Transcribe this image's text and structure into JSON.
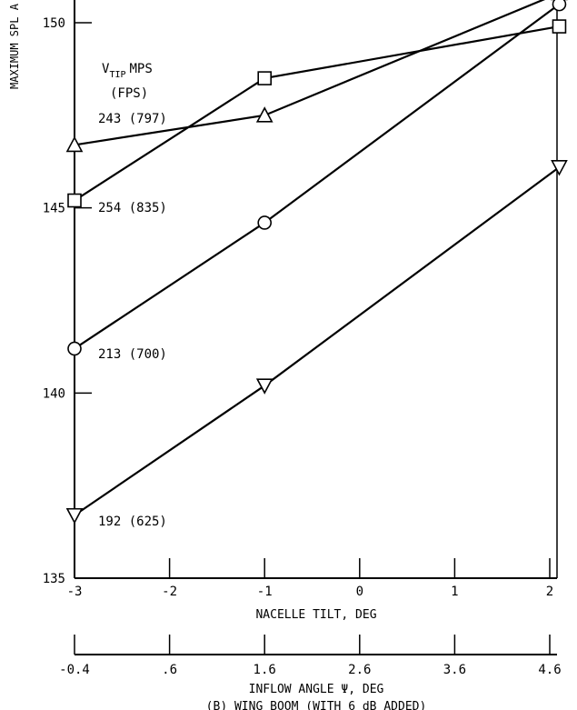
{
  "chart_data": {
    "type": "line",
    "ylabel": "MAXIMUM SPL A",
    "xlabel": "NACELLE TILT, DEG",
    "x2label": "INFLOW ANGLE Ψ, DEG",
    "caption": "(B) WING BOOM (WITH 6 dB ADDED)",
    "xlim": [
      -3,
      2.15
    ],
    "ylim": [
      135,
      151
    ],
    "xticks": [
      "-3",
      "-2",
      "-1",
      "0",
      "1",
      "2"
    ],
    "x2ticks": [
      "-0.4",
      ".6",
      "1.6",
      "2.6",
      "3.6",
      "4.6"
    ],
    "yticks": [
      "135",
      "140",
      "145",
      "150"
    ],
    "legend_title": {
      "v": "V",
      "sub": "TIP",
      "unit": "MPS",
      "unit2": "(FPS)"
    },
    "series": [
      {
        "name": "243 (797)",
        "marker": "triangle-up",
        "x": [
          -3,
          -1,
          2.1
        ],
        "y": [
          146.7,
          147.5,
          150.8
        ]
      },
      {
        "name": "254 (835)",
        "marker": "square",
        "x": [
          -3,
          -1,
          2.1
        ],
        "y": [
          145.2,
          148.5,
          149.9
        ]
      },
      {
        "name": "213 (700)",
        "marker": "circle",
        "x": [
          -3,
          -1,
          2.1
        ],
        "y": [
          141.2,
          144.6,
          150.5
        ]
      },
      {
        "name": "192 (625)",
        "marker": "triangle-down",
        "x": [
          -3,
          -1,
          2.1
        ],
        "y": [
          136.7,
          140.2,
          146.1
        ]
      }
    ]
  }
}
